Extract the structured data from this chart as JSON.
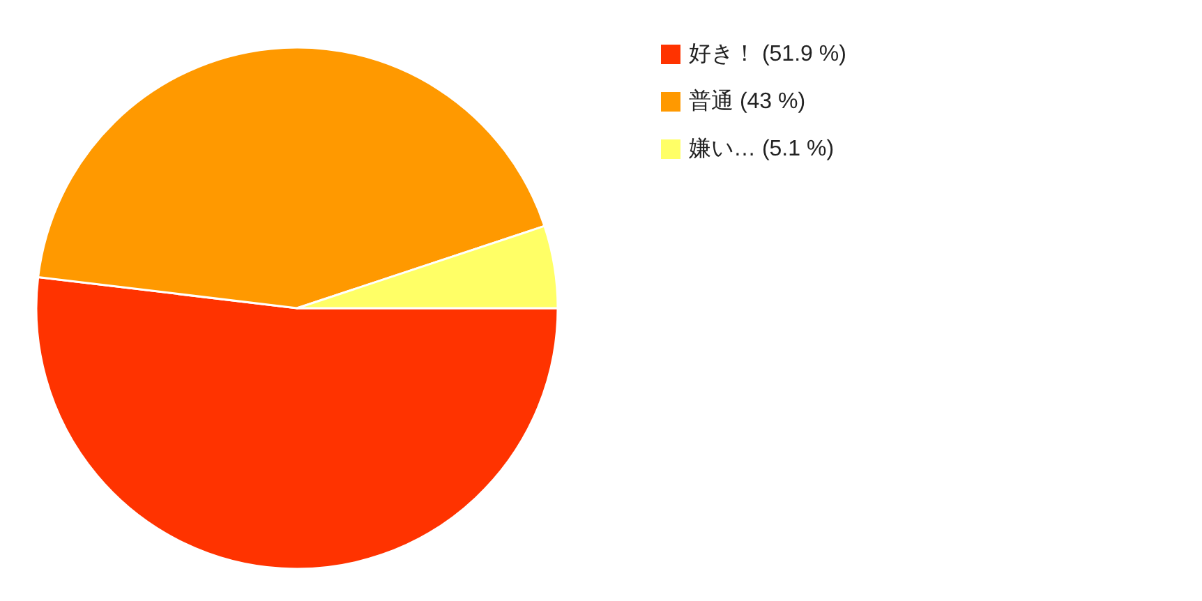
{
  "chart_data": {
    "type": "pie",
    "categories": [
      "好き！ (51.9 %)",
      "普通 (43 %)",
      "嫌い… (5.1 %)"
    ],
    "values": [
      51.9,
      43,
      5.1
    ],
    "colors": [
      "#ff3300",
      "#ff9900",
      "#ffff66"
    ],
    "legend": "top right"
  }
}
